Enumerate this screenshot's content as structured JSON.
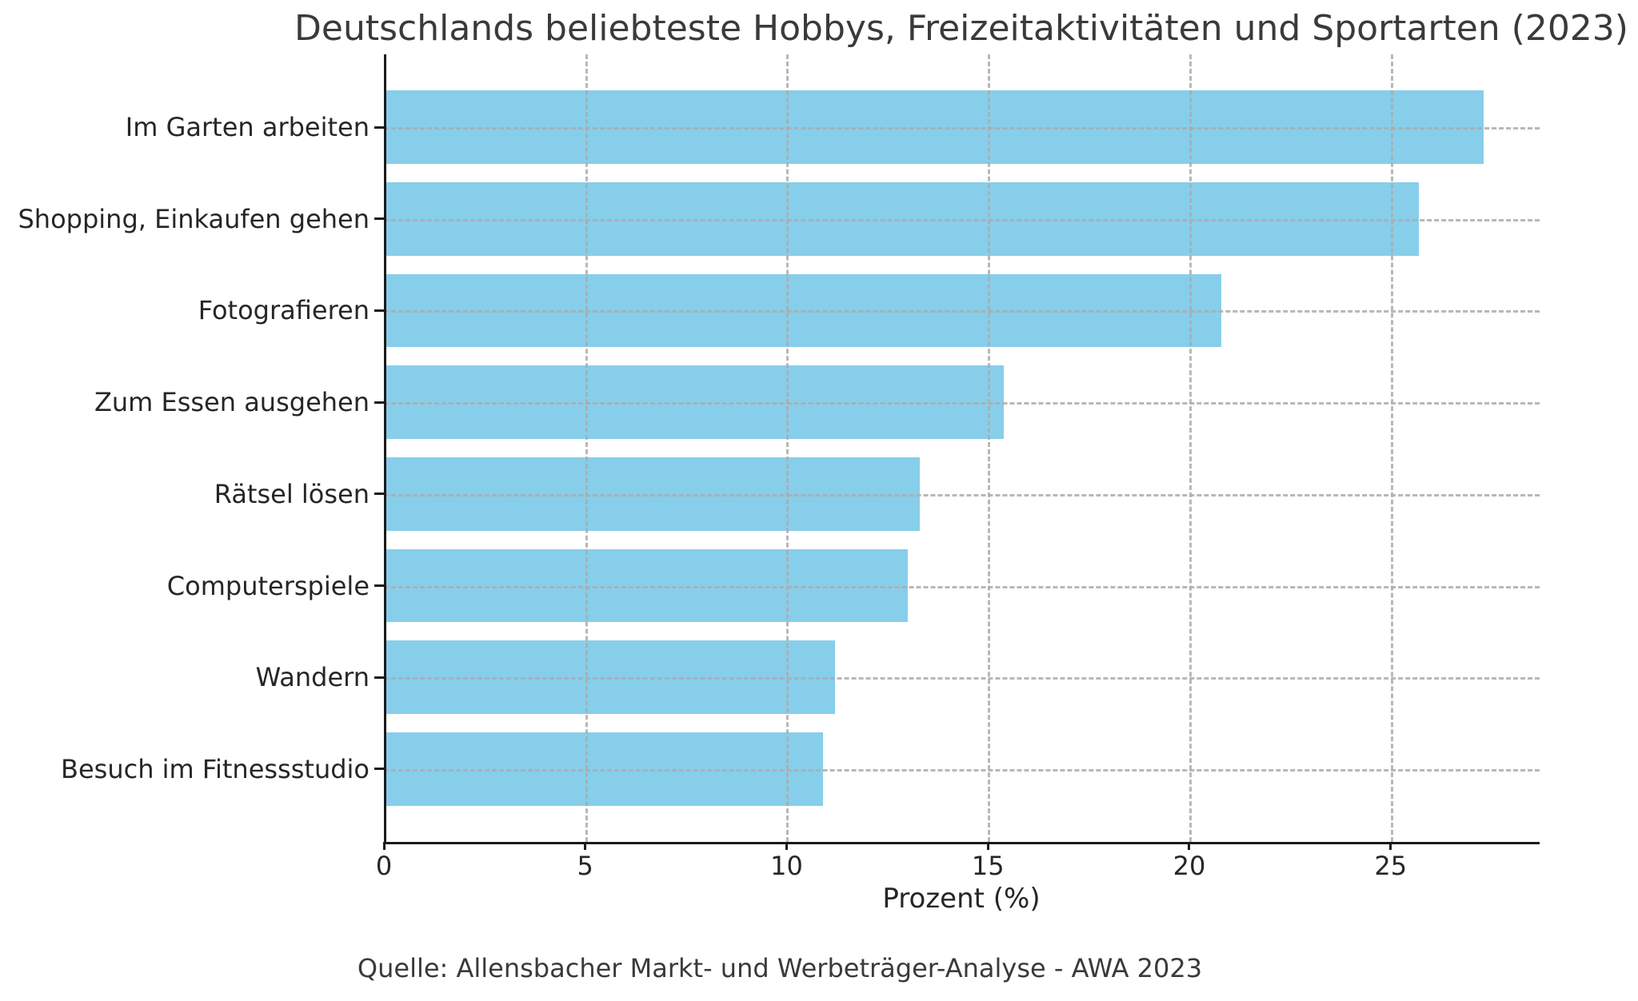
{
  "chart_data": {
    "type": "bar",
    "orientation": "horizontal",
    "title": "Deutschlands beliebteste Hobbys, Freizeitaktivitäten und Sportarten (2023)",
    "xlabel": "Prozent (%)",
    "source": "Quelle: Allensbacher Markt- und Werbeträger-Analyse - AWA 2023",
    "categories": [
      "Im Garten arbeiten",
      "Shopping, Einkaufen gehen",
      "Fotografieren",
      "Zum Essen ausgehen",
      "Rätsel lösen",
      "Computerspiele",
      "Wandern",
      "Besuch im Fitnessstudio"
    ],
    "values": [
      27.3,
      25.7,
      20.8,
      15.4,
      13.3,
      13.0,
      11.2,
      10.9
    ],
    "xticks": [
      0,
      5,
      10,
      15,
      20,
      25
    ],
    "xlim": [
      0,
      28.7
    ],
    "bar_color": "#87CEEB",
    "grid": "dashed-both-axes-over-bars",
    "legend": "none",
    "background": "#ffffff"
  }
}
